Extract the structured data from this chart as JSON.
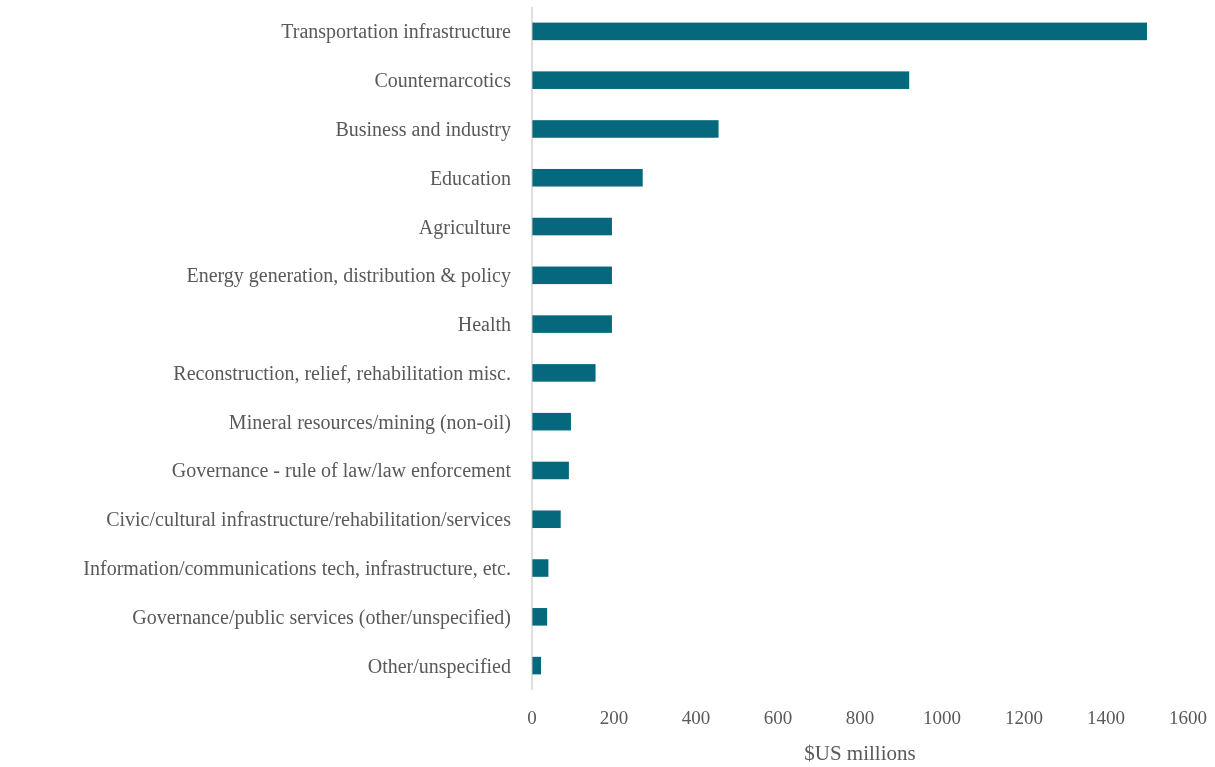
{
  "chart_data": {
    "type": "bar",
    "orientation": "horizontal",
    "xlabel": "$US millions",
    "categories": [
      "Transportation infrastructure",
      "Counternarcotics",
      "Business and industry",
      "Education",
      "Agriculture",
      "Energy generation, distribution & policy",
      "Health",
      "Reconstruction, relief, rehabilitation misc.",
      "Mineral resources/mining (non-oil)",
      "Governance - rule of law/law enforcement",
      "Civic/cultural infrastructure/rehabilitation/services",
      "Information/communications tech, infrastructure, etc.",
      "Governance/public services (other/unspecified)",
      "Other/unspecified"
    ],
    "values": [
      1500,
      920,
      455,
      270,
      195,
      195,
      195,
      155,
      95,
      90,
      70,
      40,
      37,
      22
    ],
    "color": "#05687d",
    "xlim": [
      0,
      1600
    ],
    "xticks": [
      0,
      200,
      400,
      600,
      800,
      1000,
      1200,
      1400,
      1600
    ],
    "grid": false
  }
}
